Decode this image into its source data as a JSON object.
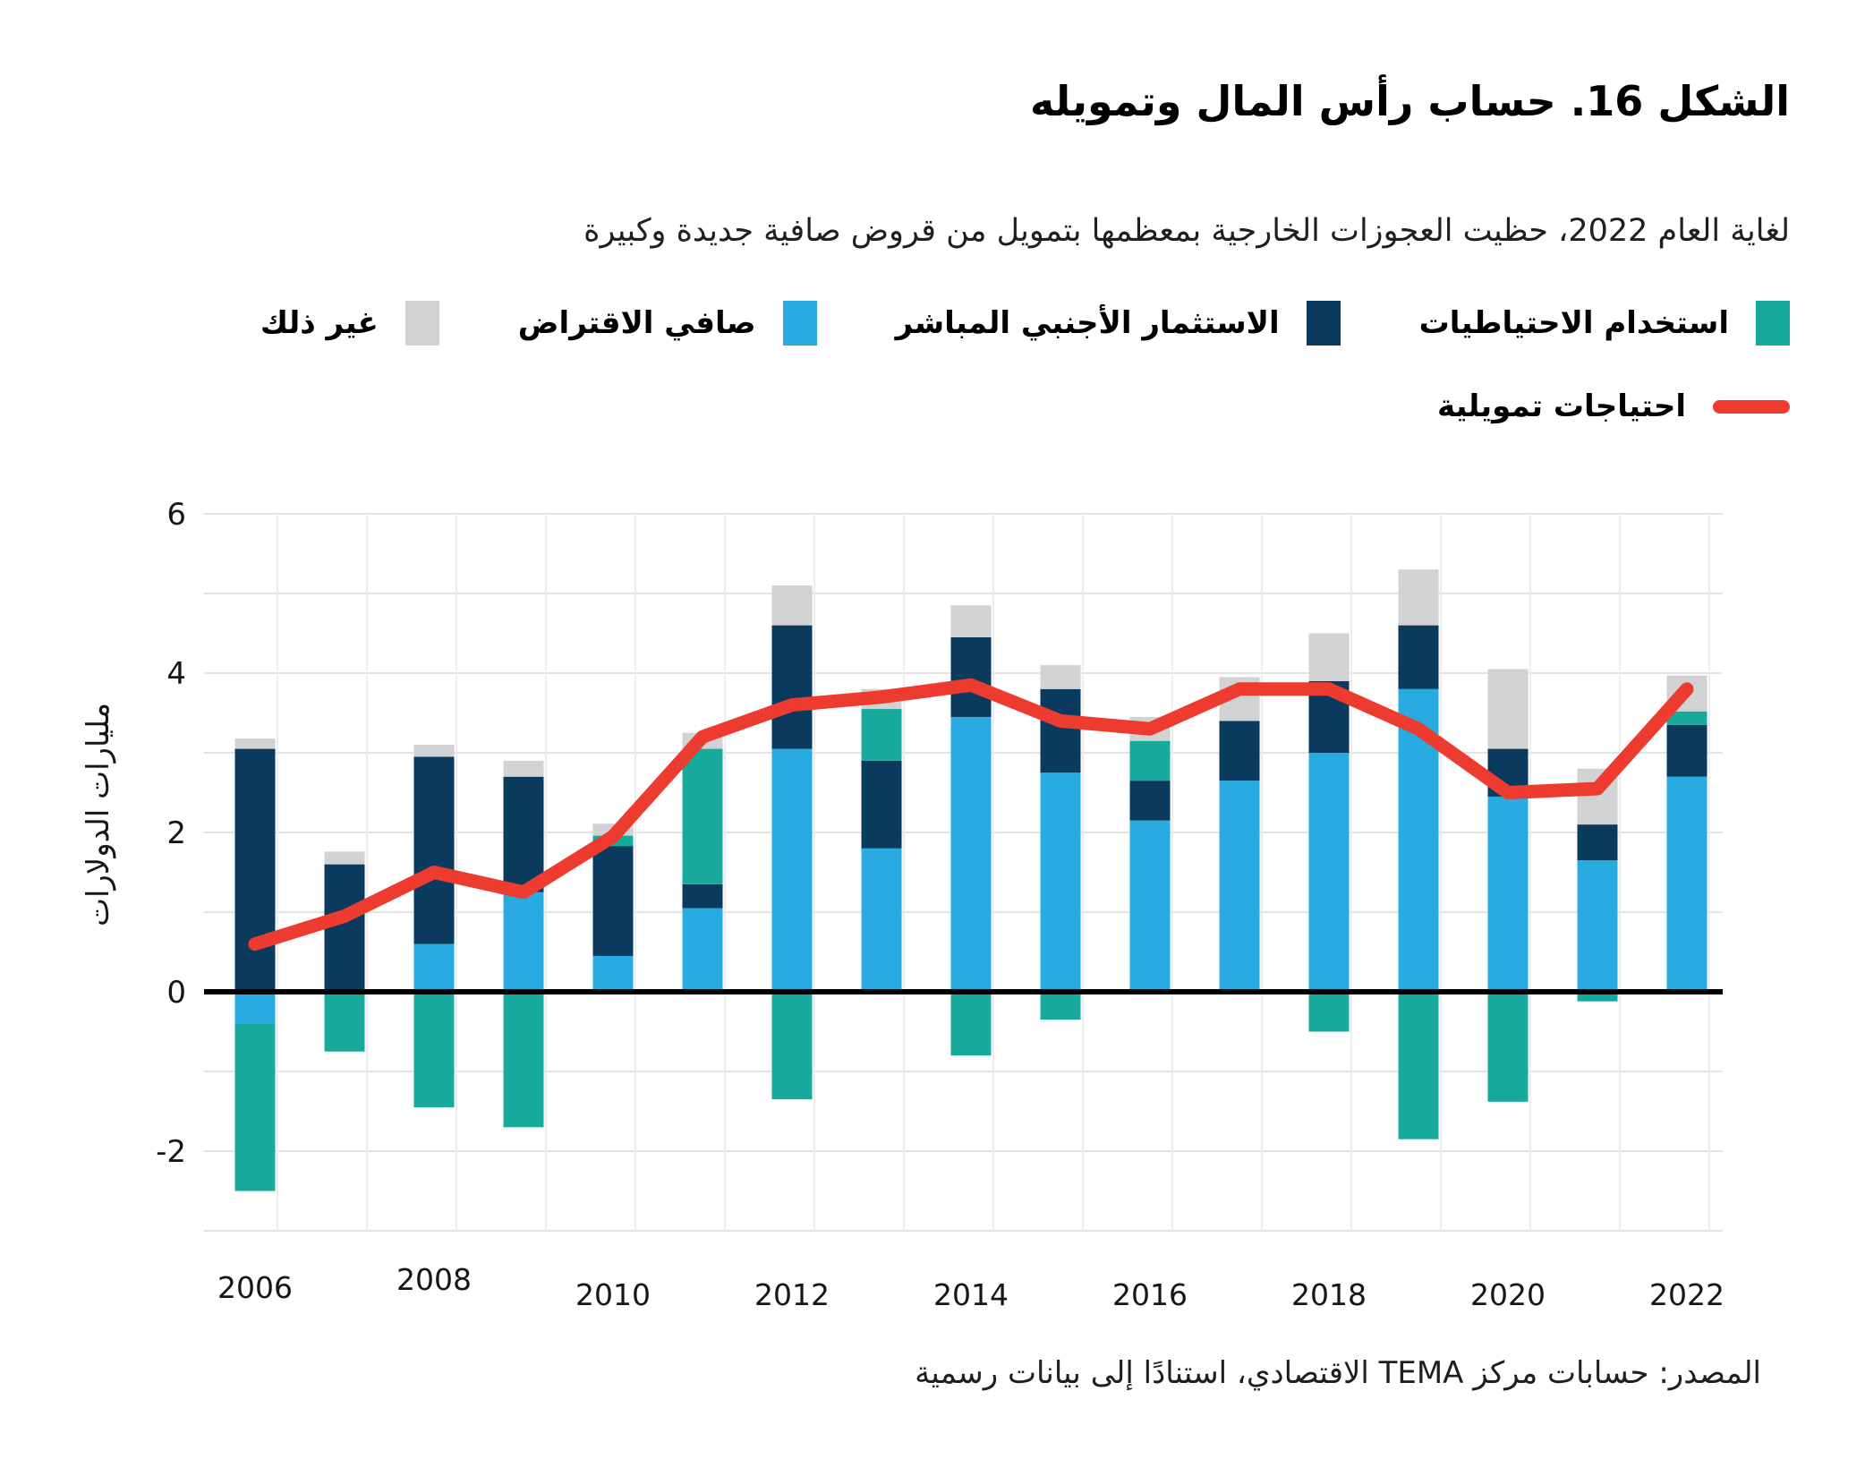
{
  "header": {
    "title": "الشكل 16. حساب رأس المال وتمويله",
    "subtitle": "لغاية العام 2022، حظيت العجوزات الخارجية بمعظمها بتمويل من قروض صافية جديدة وكبيرة"
  },
  "legend": {
    "items": [
      {
        "label": "استخدام الاحتياطيات",
        "color": "#18a99d",
        "type": "swatch"
      },
      {
        "label": "الاستثمار الأجنبي المباشر",
        "color": "#0a3a5e",
        "type": "swatch"
      },
      {
        "label": "صافي الاقتراض",
        "color": "#29abe2",
        "type": "swatch"
      },
      {
        "label": "غير ذلك",
        "color": "#d0d2d3",
        "type": "swatch"
      },
      {
        "label": "احتياجات تمويلية",
        "color": "#ee3b2f",
        "type": "line"
      }
    ]
  },
  "chart_data": {
    "type": "bar",
    "stacked": true,
    "grid": true,
    "title": "الشكل 16. حساب رأس المال وتمويله",
    "xlabel": "",
    "ylabel": "مليارات الدولارات",
    "ylim": [
      -3,
      6
    ],
    "y_ticks": [
      6,
      4,
      2,
      0,
      -2
    ],
    "categories": [
      "2006",
      "2007",
      "2008",
      "2009",
      "2010",
      "2011",
      "2012",
      "2013",
      "2014",
      "2015",
      "2016",
      "2017",
      "2018",
      "2019",
      "2020",
      "2021",
      "2022"
    ],
    "x_tick_labels": [
      "2006",
      "2008",
      "2010",
      "2012",
      "2014",
      "2016",
      "2018",
      "2020",
      "2022"
    ],
    "series": [
      {
        "name": "صافي الاقتراض",
        "color": "#29abe2",
        "values": [
          -0.4,
          0,
          0.6,
          1.25,
          0.45,
          1.05,
          3.05,
          1.8,
          3.45,
          2.75,
          2.15,
          2.65,
          3.0,
          3.8,
          2.45,
          1.65,
          2.7
        ]
      },
      {
        "name": "الاستثمار الأجنبي المباشر",
        "color": "#0a3a5e",
        "values": [
          3.05,
          1.6,
          2.35,
          1.45,
          1.38,
          0.3,
          1.55,
          1.1,
          1.0,
          1.05,
          0.5,
          0.75,
          0.9,
          0.8,
          0.6,
          0.45,
          0.65
        ]
      },
      {
        "name": "استخدام الاحتياطيات",
        "color": "#18a99d",
        "values": [
          -2.1,
          -0.75,
          -1.45,
          -1.7,
          0.13,
          1.7,
          -1.35,
          0.65,
          -0.8,
          -0.35,
          0.5,
          0,
          -0.5,
          -1.85,
          -1.38,
          -0.12,
          0.17
        ]
      },
      {
        "name": "غير ذلك",
        "color": "#d0d2d3",
        "values": [
          0.13,
          0.16,
          0.15,
          0.2,
          0.15,
          0.2,
          0.5,
          0.25,
          0.4,
          0.3,
          0.3,
          0.55,
          0.6,
          0.7,
          1.0,
          0.7,
          0.45
        ]
      }
    ],
    "line_series": {
      "name": "احتياجات تمويلية",
      "color": "#ee3b2f",
      "values": [
        0.6,
        0.95,
        1.5,
        1.25,
        1.95,
        3.2,
        3.6,
        3.7,
        3.85,
        3.4,
        3.3,
        3.8,
        3.8,
        3.3,
        2.5,
        2.55,
        3.8
      ]
    },
    "legend_position": "top-right"
  },
  "source": "المصدر: حسابات مركز TEMA الاقتصادي، استنادًا إلى بيانات رسمية"
}
